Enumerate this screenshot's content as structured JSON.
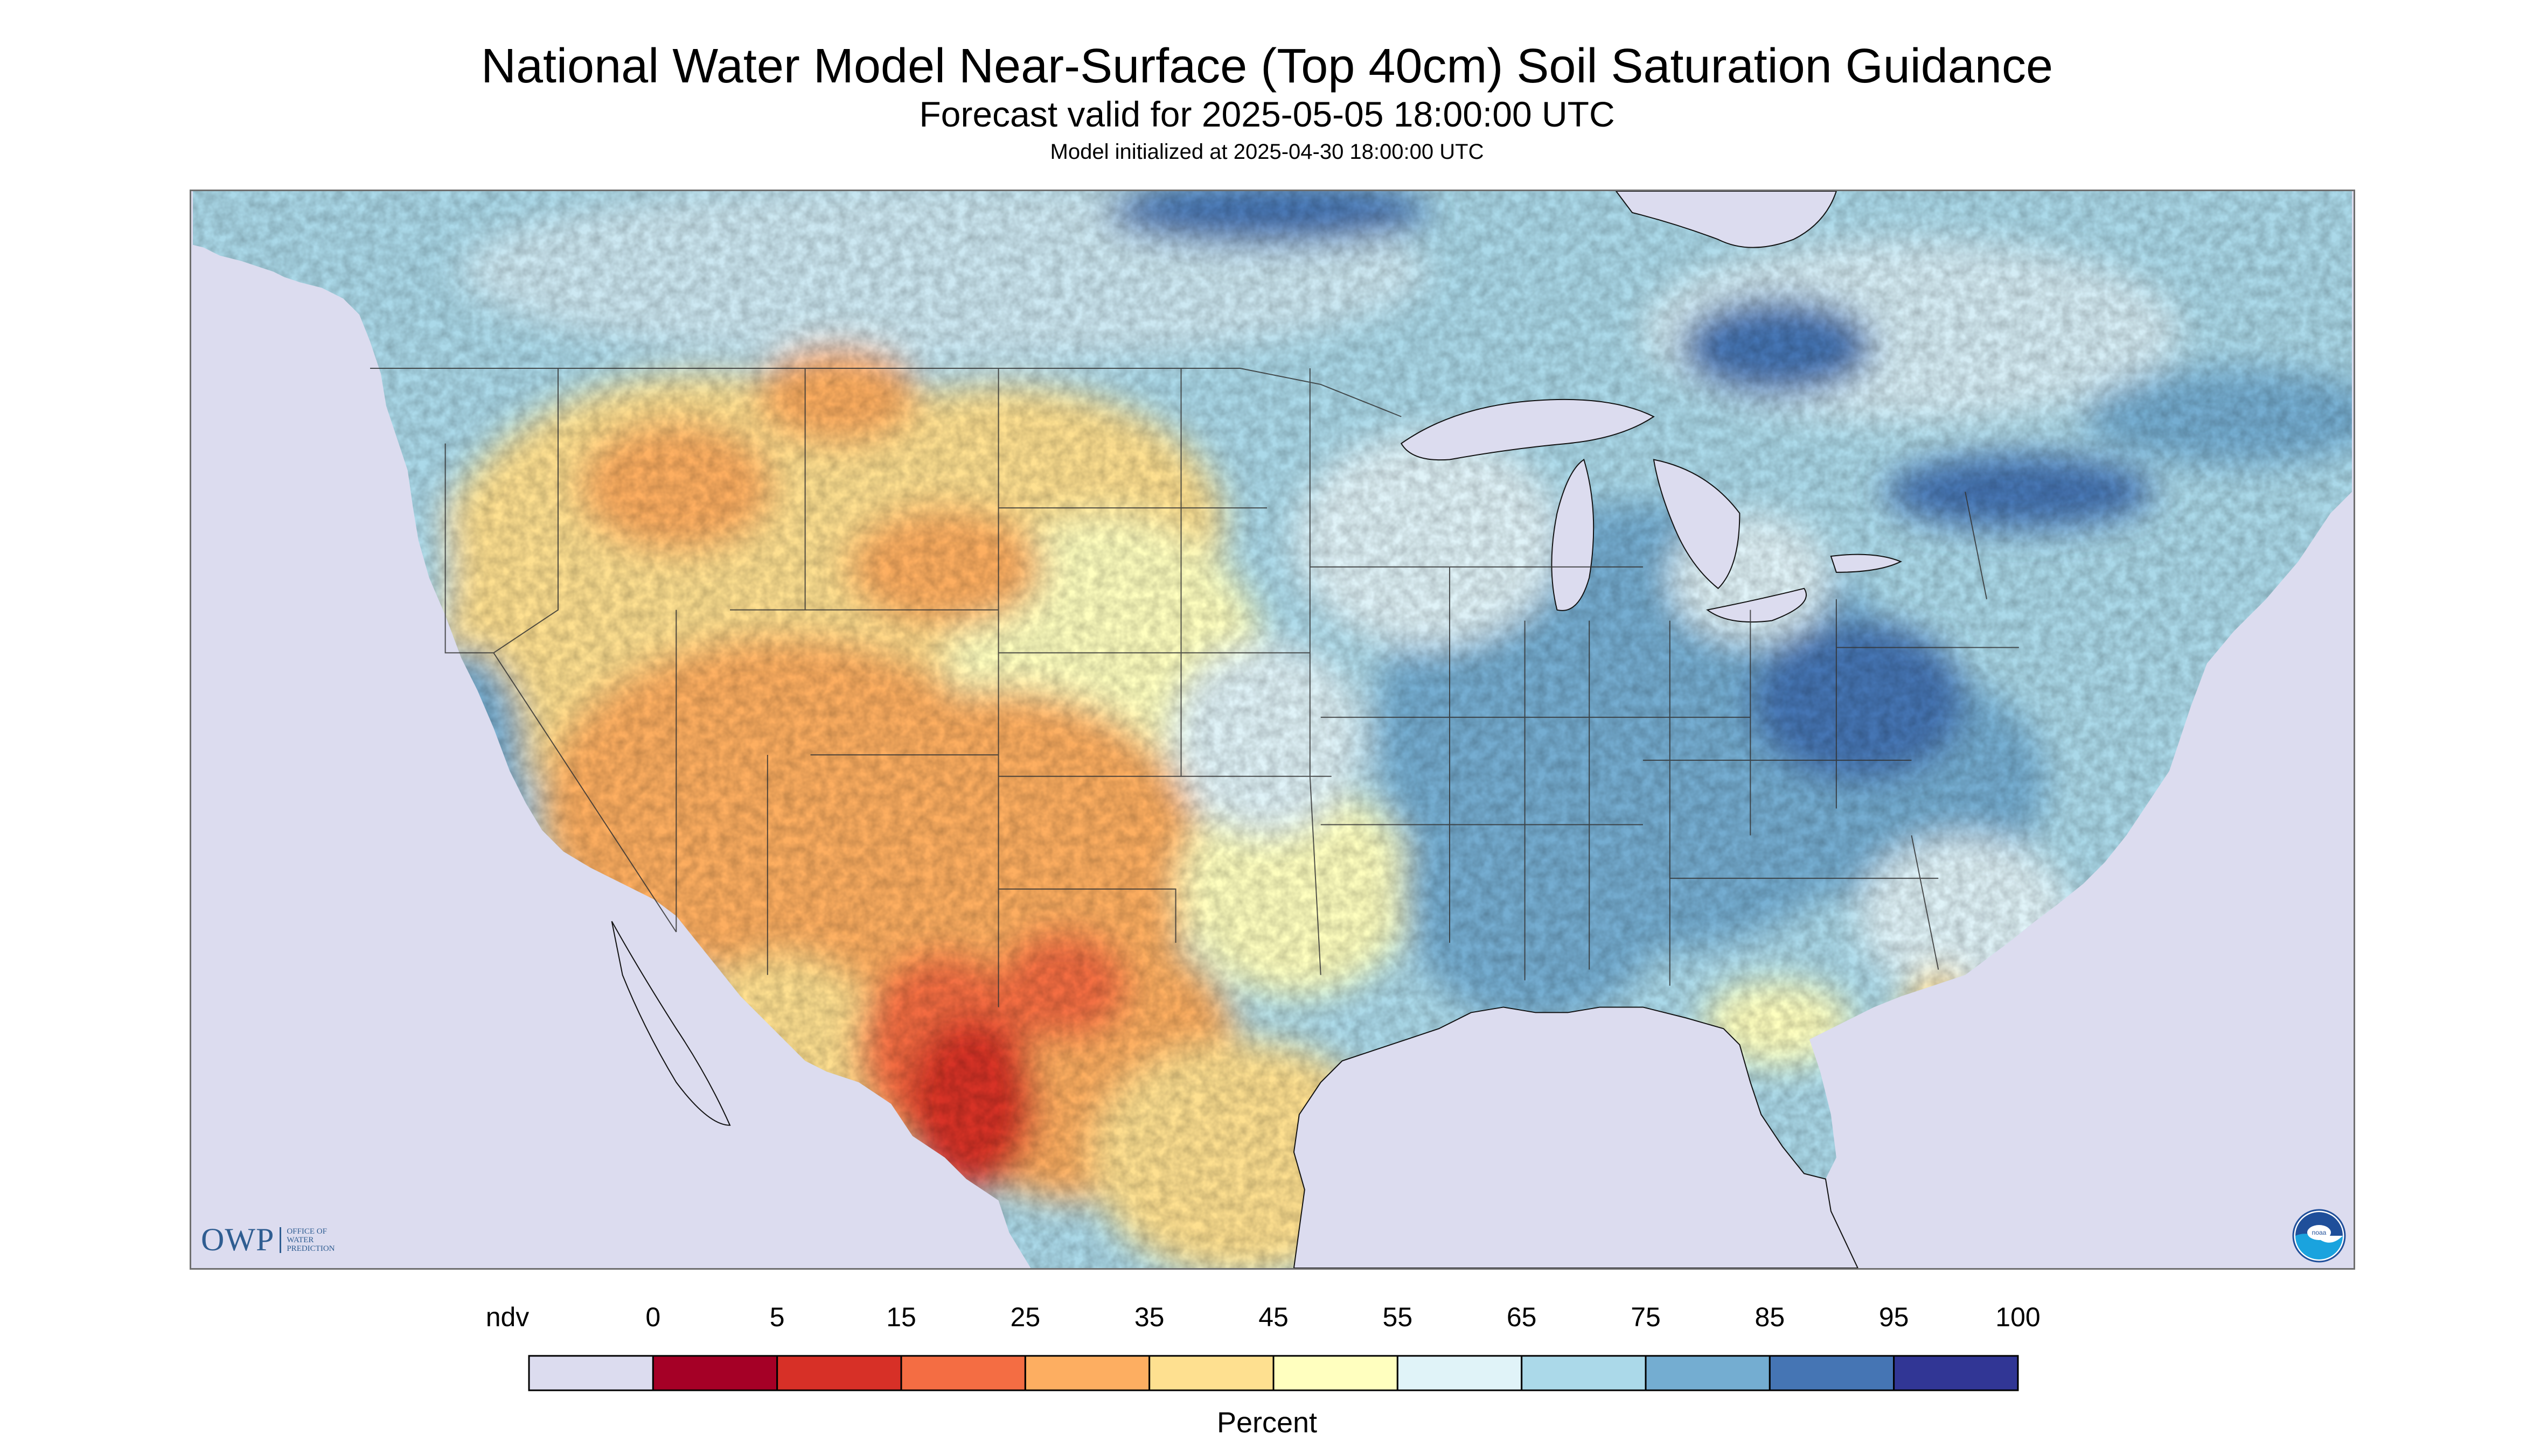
{
  "title": "National Water Model Near-Surface (Top 40cm) Soil Saturation Guidance",
  "forecast_line": "Forecast valid for 2025-05-05 18:00:00 UTC",
  "init_line": "Model initialized at 2025-04-30 18:00:00 UTC",
  "logo": {
    "text": "OWP",
    "sub": "OFFICE OF\nWATER\nPREDICTION",
    "icon": "owp-logo",
    "noaa_icon": "noaa-logo"
  },
  "legend": {
    "unit": "Percent",
    "ndv_label": "ndv",
    "ticks": [
      "0",
      "5",
      "15",
      "25",
      "35",
      "45",
      "55",
      "65",
      "75",
      "85",
      "95",
      "100"
    ],
    "bins": [
      {
        "range": "ndv",
        "color": "#dcdcef"
      },
      {
        "range": "0-5",
        "color": "#a50026"
      },
      {
        "range": "5-15",
        "color": "#d73027"
      },
      {
        "range": "15-25",
        "color": "#f46d43"
      },
      {
        "range": "25-35",
        "color": "#fdae61"
      },
      {
        "range": "35-45",
        "color": "#fee090"
      },
      {
        "range": "45-55",
        "color": "#ffffbf"
      },
      {
        "range": "55-65",
        "color": "#e0f3f8"
      },
      {
        "range": "65-75",
        "color": "#abd9e9"
      },
      {
        "range": "75-85",
        "color": "#74add1"
      },
      {
        "range": "85-95",
        "color": "#4575b4"
      },
      {
        "range": "95-100",
        "color": "#313695"
      }
    ]
  },
  "colors": {
    "no_data": "#dcdcef",
    "water": "#dcdcef",
    "border_lines": "#333333"
  }
}
